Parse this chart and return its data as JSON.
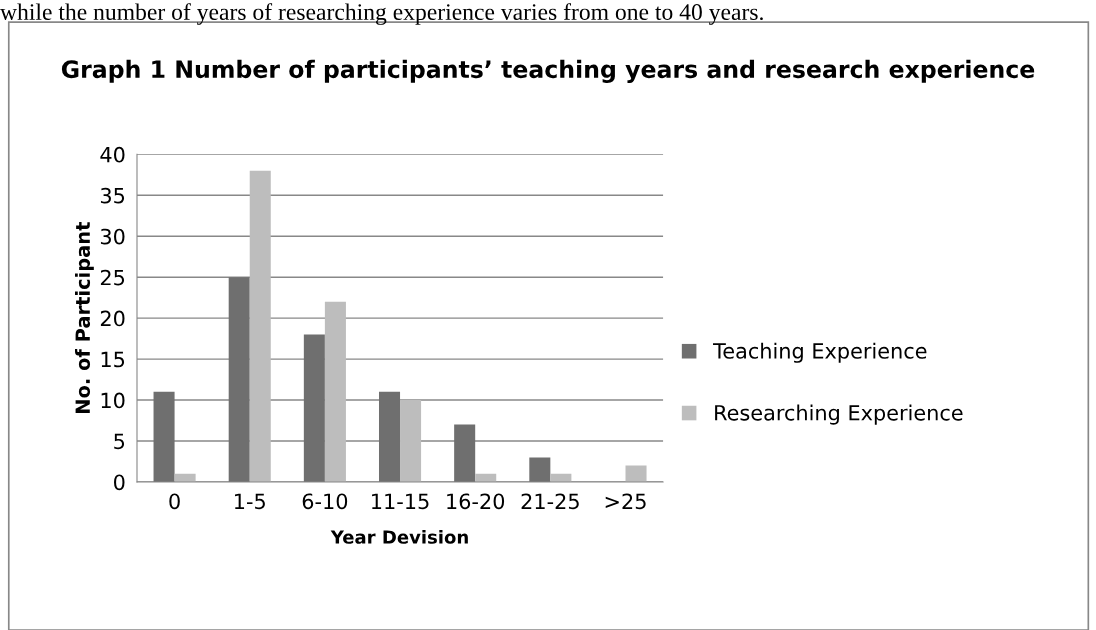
{
  "chart_data": {
    "type": "bar",
    "title": "Graph 1 Number of participants’ teaching years and research experience",
    "xlabel": "Year Devision",
    "ylabel": "No. of Participant",
    "categories": [
      "0",
      "1-5",
      "6-10",
      "11-15",
      "16-20",
      "21-25",
      ">25"
    ],
    "series": [
      {
        "name": "Teaching Experience",
        "color": "#6f6f6f",
        "values": [
          11,
          25,
          18,
          11,
          7,
          3,
          0
        ]
      },
      {
        "name": "Researching Experience",
        "color": "#bdbdbd",
        "values": [
          1,
          38,
          22,
          10,
          1,
          1,
          2
        ]
      }
    ],
    "ylim": [
      0,
      40
    ],
    "yticks": [
      0,
      5,
      10,
      15,
      20,
      25,
      30,
      35,
      40
    ],
    "grid": "y",
    "legend": "right",
    "annotations": [
      "while the number of years of researching experience varies from one to 40 years."
    ]
  }
}
